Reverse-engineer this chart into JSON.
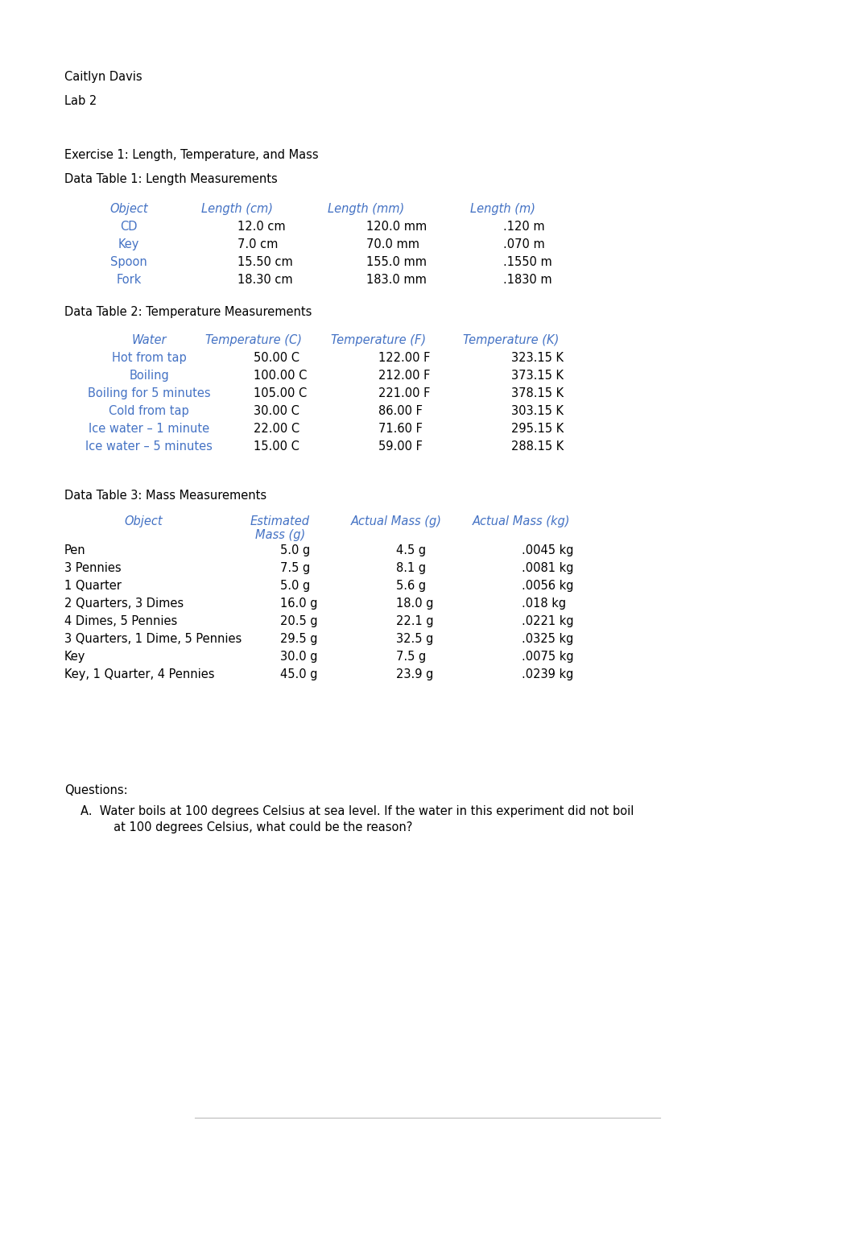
{
  "bg_color": "#ffffff",
  "text_color": "#000000",
  "blue_color": "#4472C4",
  "header_name": "Caitlyn Davis",
  "lab_name": "Lab 2",
  "exercise_title": "Exercise 1: Length, Temperature, and Mass",
  "table1_title": "Data Table 1: Length Measurements",
  "table1_headers": [
    "Object",
    "Length (cm)",
    "Length (mm)",
    "Length (m)"
  ],
  "table1_rows": [
    [
      "CD",
      "12.0 cm",
      "120.0 mm",
      ".120 m"
    ],
    [
      "Key",
      "7.0 cm",
      "70.0 mm",
      ".070 m"
    ],
    [
      "Spoon",
      "15.50 cm",
      "155.0 mm",
      ".1550 m"
    ],
    [
      "Fork",
      "18.30 cm",
      "183.0 mm",
      ".1830 m"
    ]
  ],
  "table2_title": "Data Table 2: Temperature Measurements",
  "table2_headers": [
    "Water",
    "Temperature (C)",
    "Temperature (F)",
    "Temperature (K)"
  ],
  "table2_rows": [
    [
      "Hot from tap",
      "50.00 C",
      "122.00 F",
      "323.15 K"
    ],
    [
      "Boiling",
      "100.00 C",
      "212.00 F",
      "373.15 K"
    ],
    [
      "Boiling for 5 minutes",
      "105.00 C",
      "221.00 F",
      "378.15 K"
    ],
    [
      "Cold from tap",
      "30.00 C",
      "86.00 F",
      "303.15 K"
    ],
    [
      "Ice water – 1 minute",
      "22.00 C",
      "71.60 F",
      "295.15 K"
    ],
    [
      "Ice water – 5 minutes",
      "15.00 C",
      "59.00 F",
      "288.15 K"
    ]
  ],
  "table3_title": "Data Table 3: Mass Measurements",
  "table3_headers": [
    "Object",
    "Estimated\nMass (g)",
    "Actual Mass (g)",
    "Actual Mass (kg)"
  ],
  "table3_rows": [
    [
      "Pen",
      "5.0 g",
      "4.5 g",
      ".0045 kg"
    ],
    [
      "3 Pennies",
      "7.5 g",
      "8.1 g",
      ".0081 kg"
    ],
    [
      "1 Quarter",
      "5.0 g",
      "5.6 g",
      ".0056 kg"
    ],
    [
      "2 Quarters, 3 Dimes",
      "16.0 g",
      "18.0 g",
      ".018 kg"
    ],
    [
      "4 Dimes, 5 Pennies",
      "20.5 g",
      "22.1 g",
      ".0221 kg"
    ],
    [
      "3 Quarters, 1 Dime, 5 Pennies",
      "29.5 g",
      "32.5 g",
      ".0325 kg"
    ],
    [
      "Key",
      "30.0 g",
      "7.5 g",
      ".0075 kg"
    ],
    [
      "Key, 1 Quarter, 4 Pennies",
      "45.0 g",
      "23.9 g",
      ".0239 kg"
    ]
  ],
  "questions_title": "Questions:",
  "question_a_line1": "A.  Water boils at 100 degrees Celsius at sea level. If the water in this experiment did not boil",
  "question_a_line2": "     at 100 degrees Celsius, what could be the reason?"
}
